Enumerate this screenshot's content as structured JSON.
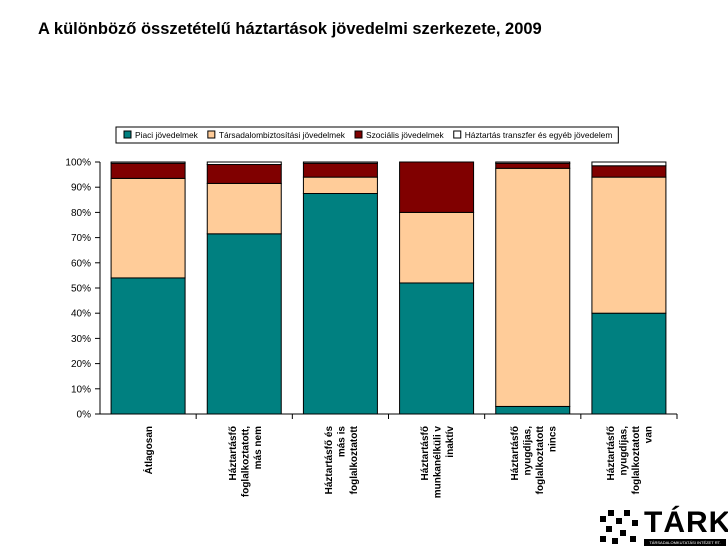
{
  "title": "A különböző összetételű háztartások jövedelmi szerkezete, 2009",
  "chart_data": {
    "type": "bar",
    "stacked": true,
    "percent": true,
    "title": "A különböző összetételű háztartások jövedelmi szerkezete, 2009",
    "xlabel": "",
    "ylabel": "",
    "ylim": [
      0,
      100
    ],
    "yticks": [
      "0%",
      "10%",
      "20%",
      "30%",
      "40%",
      "50%",
      "60%",
      "70%",
      "80%",
      "90%",
      "100%"
    ],
    "categories": [
      [
        "Átlagosan"
      ],
      [
        "Háztartásfő",
        "foglalkoztatott,",
        "más nem"
      ],
      [
        "Háztartásfő és",
        "más is",
        "foglalkoztatott"
      ],
      [
        "Háztartásfő",
        "munkanélküli v",
        "inaktív"
      ],
      [
        "Háztartásfő",
        "nyugdíjas,",
        "foglalkoztatott",
        "nincs"
      ],
      [
        "Háztartásfő",
        "nyugdíjas,",
        "foglalkoztatott",
        "van"
      ]
    ],
    "series": [
      {
        "name": "Piaci jövedelmek",
        "color": "#008080",
        "values": [
          54,
          71.5,
          87.5,
          52,
          3,
          40
        ]
      },
      {
        "name": "Társadalombiztosítási jövedelmek",
        "color": "#FFCC99",
        "values": [
          39.5,
          20,
          6.5,
          28,
          94.5,
          54
        ]
      },
      {
        "name": "Szociális jövedelmek",
        "color": "#800000",
        "values": [
          6,
          7.5,
          5.5,
          20,
          2,
          4.5
        ]
      },
      {
        "name": "Háztartás transzfer és egyéb jövedelem",
        "color": "#FFFFFF",
        "values": [
          0.5,
          1,
          0.5,
          0,
          0.5,
          1.5
        ]
      }
    ],
    "legend": "top"
  },
  "logo": {
    "word": "TÁRKI",
    "subtitle": "TÁRSADALOMKUTATÁSI INTÉZET RT."
  }
}
